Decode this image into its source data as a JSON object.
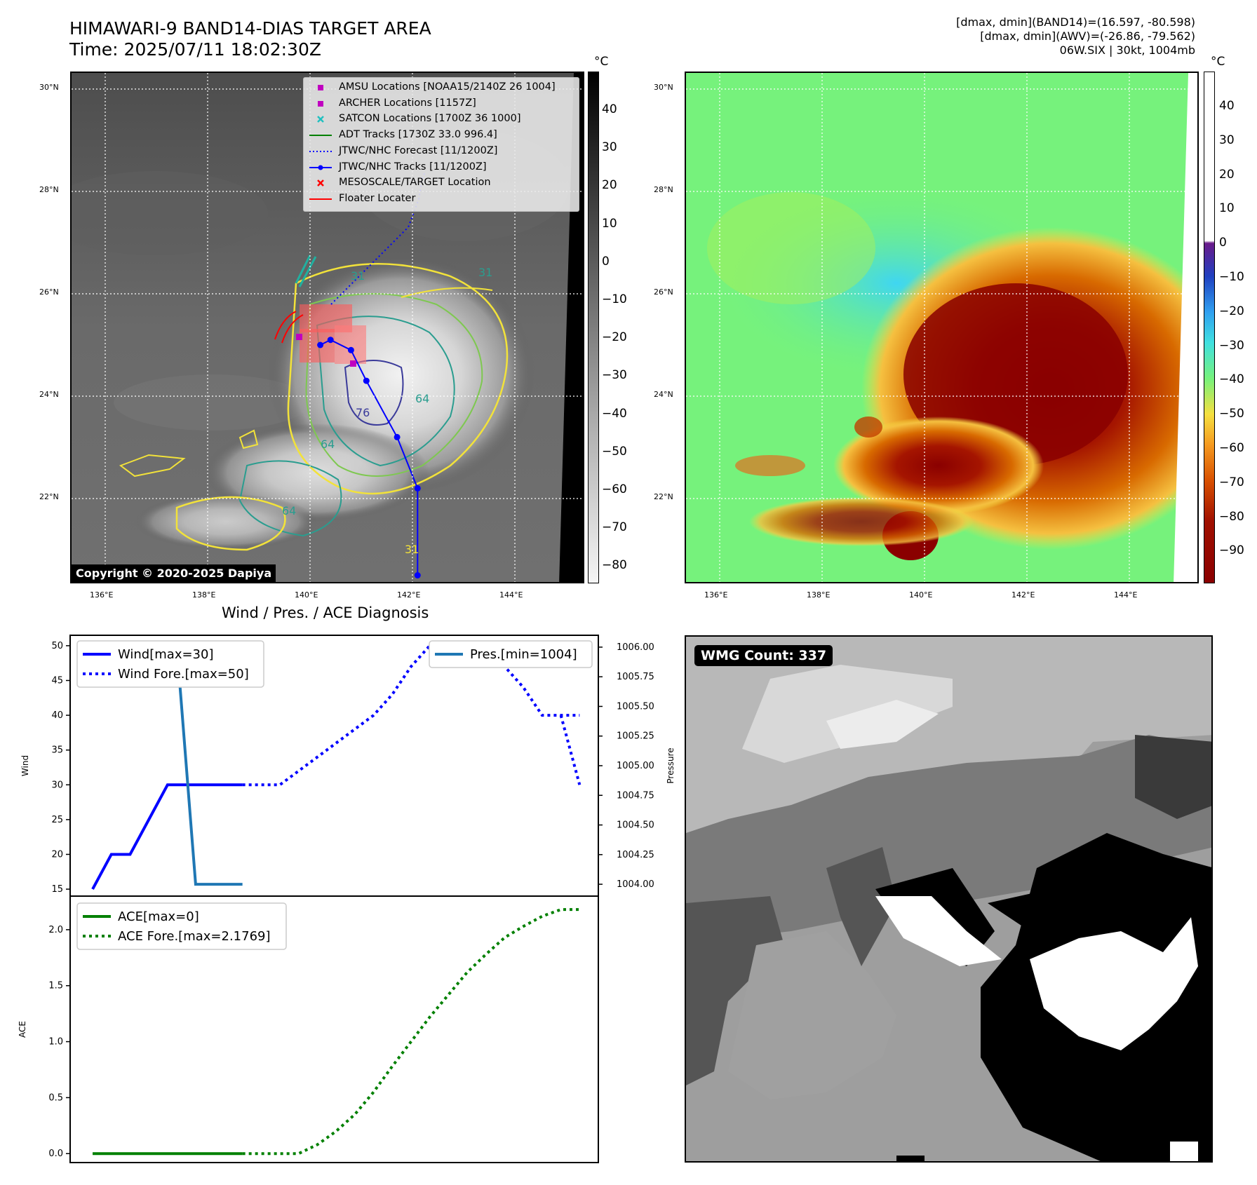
{
  "header": {
    "title_line1": "HIMAWARI-9 BAND14-DIAS TARGET AREA",
    "title_line2": "Time: 2025/07/11 18:02:30Z",
    "info_line1": "[dmax, dmin](BAND14)=(16.597, -80.598)",
    "info_line2": "[dmax, dmin](AWV)=(-26.86, -79.562)",
    "info_line3": "06W.SIX | 30kt, 1004mb"
  },
  "ir_panel": {
    "lat_labels": [
      "30°N",
      "28°N",
      "26°N",
      "24°N",
      "22°N"
    ],
    "lon_labels": [
      "136°E",
      "138°E",
      "140°E",
      "142°E",
      "144°E"
    ],
    "colorbar_unit": "°C",
    "colorbar_ticks": [
      "40",
      "30",
      "20",
      "10",
      "0",
      "−10",
      "−20",
      "−30",
      "−40",
      "−50",
      "−60",
      "−70",
      "−80"
    ],
    "copyright": "Copyright © 2020-2025 Dapiya",
    "legend": [
      {
        "label": "AMSU Locations [NOAA15/2140Z 26 1004]",
        "icon": "square",
        "color": "#c000c0"
      },
      {
        "label": "ARCHER Locations [1157Z]",
        "icon": "square",
        "color": "#c000c0"
      },
      {
        "label": "SATCON Locations [1700Z 36 1000]",
        "icon": "x",
        "color": "#20c0c0"
      },
      {
        "label": "ADT Tracks [1730Z 33.0 996.4]",
        "icon": "line",
        "color": "#008000"
      },
      {
        "label": "JTWC/NHC Forecast [11/1200Z]",
        "icon": "dotted",
        "color": "#0000ff"
      },
      {
        "label": "JTWC/NHC Tracks [11/1200Z]",
        "icon": "line-dot",
        "color": "#0000ff"
      },
      {
        "label": "MESOSCALE/TARGET Location",
        "icon": "x",
        "color": "#ff0000"
      },
      {
        "label": "Floater Locater",
        "icon": "line",
        "color": "#ff0000"
      }
    ],
    "contour_labels": [
      "31",
      "31",
      "64",
      "64",
      "64",
      "76",
      "31"
    ],
    "track_points": [
      [
        140.2,
        25.0
      ],
      [
        140.4,
        25.1
      ],
      [
        140.8,
        24.9
      ],
      [
        141.1,
        24.3
      ],
      [
        141.7,
        23.2
      ],
      [
        142.1,
        22.2
      ],
      [
        142.1,
        20.5
      ]
    ]
  },
  "color_panel": {
    "lat_labels": [
      "30°N",
      "28°N",
      "26°N",
      "24°N",
      "22°N"
    ],
    "lon_labels": [
      "136°E",
      "138°E",
      "140°E",
      "142°E",
      "144°E"
    ],
    "colorbar_unit": "°C",
    "colorbar_ticks": [
      "40",
      "30",
      "20",
      "10",
      "0",
      "−10",
      "−20",
      "−30",
      "−40",
      "−50",
      "−60",
      "−70",
      "−80",
      "−90"
    ]
  },
  "wmg_panel": {
    "count_label": "WMG Count: 337"
  },
  "chart_data": [
    {
      "type": "line",
      "title": "Wind / Pres. / ACE Diagnosis",
      "ylabel": "Wind",
      "ylabel_right": "Pressure",
      "ylim": [
        14,
        51.5
      ],
      "ylim_right": [
        1003.9,
        1006.1
      ],
      "y_ticks": [
        "50",
        "45",
        "40",
        "35",
        "30",
        "25",
        "20",
        "15"
      ],
      "y_ticks_right": [
        "1006.00",
        "1005.75",
        "1005.50",
        "1005.25",
        "1005.00",
        "1004.75",
        "1004.50",
        "1004.25",
        "1004.00"
      ],
      "legend_left": "upper-left",
      "legend_right": "upper-right",
      "series": [
        {
          "name": "Wind[max=30]",
          "style": "solid",
          "color": "#0000ff",
          "axis": "left",
          "x": [
            0,
            1,
            2,
            4,
            8
          ],
          "y": [
            15,
            20,
            20,
            30,
            30
          ]
        },
        {
          "name": "Wind Fore.[max=50]",
          "style": "dotted",
          "color": "#0000ff",
          "axis": "left",
          "x": [
            8,
            10,
            11,
            12,
            13,
            14,
            15,
            16,
            17,
            18,
            19,
            20,
            21,
            22,
            23,
            24,
            25,
            26
          ],
          "y": [
            30,
            30,
            32,
            34,
            36,
            38,
            40,
            43,
            47,
            50,
            49,
            49,
            49,
            47,
            44,
            40,
            40,
            40
          ]
        },
        {
          "name": "Pres.[min=1004]",
          "style": "solid",
          "color": "#1f77b4",
          "axis": "right",
          "x": [
            0,
            4.5,
            5.5,
            8
          ],
          "y": [
            1006.0,
            1006.0,
            1004.0,
            1004.0
          ]
        }
      ],
      "wind_fore_tail": {
        "x": [
          25,
          26
        ],
        "y": [
          40,
          30
        ]
      },
      "xlim": [
        -1.2,
        27
      ]
    },
    {
      "type": "line",
      "ylabel": "ACE",
      "ylim": [
        -0.08,
        2.3
      ],
      "y_ticks": [
        "2.0",
        "1.5",
        "1.0",
        "0.5",
        "0.0"
      ],
      "legend": "upper-left",
      "series": [
        {
          "name": "ACE[max=0]",
          "style": "solid",
          "color": "#008000",
          "x": [
            0,
            8
          ],
          "y": [
            0,
            0
          ]
        },
        {
          "name": "ACE Fore.[max=2.1769]",
          "style": "dotted",
          "color": "#008000",
          "x": [
            8,
            10,
            11,
            12,
            13,
            14,
            15,
            16,
            17,
            18,
            19,
            20,
            21,
            22,
            23,
            24,
            25,
            26
          ],
          "y": [
            0,
            0,
            0,
            0.08,
            0.2,
            0.35,
            0.55,
            0.78,
            1.0,
            1.22,
            1.42,
            1.62,
            1.78,
            1.93,
            2.03,
            2.12,
            2.18,
            2.18
          ]
        }
      ],
      "xlim": [
        -1.2,
        27
      ]
    }
  ]
}
